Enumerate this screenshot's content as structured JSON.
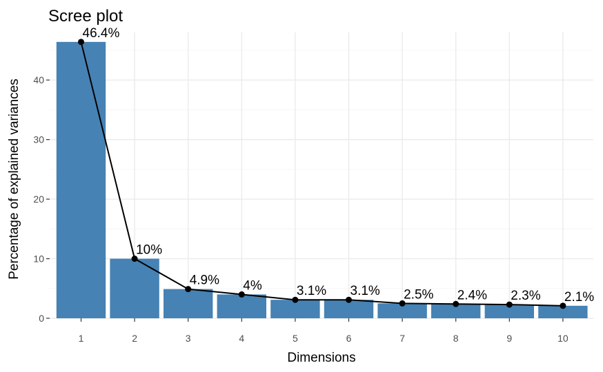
{
  "chart_data": {
    "type": "bar",
    "title": "Scree plot",
    "xlabel": "Dimensions",
    "ylabel": "Percentage of explained variances",
    "categories": [
      "1",
      "2",
      "3",
      "4",
      "5",
      "6",
      "7",
      "8",
      "9",
      "10"
    ],
    "values": [
      46.4,
      10.0,
      4.9,
      4.0,
      3.1,
      3.1,
      2.5,
      2.4,
      2.3,
      2.1
    ],
    "data_labels": [
      "46.4%",
      "10%",
      "4.9%",
      "4%",
      "3.1%",
      "3.1%",
      "2.5%",
      "2.4%",
      "2.3%",
      "2.1%"
    ],
    "y_ticks": [
      0,
      10,
      20,
      30,
      40
    ],
    "ylim": [
      0,
      48
    ],
    "grid": true,
    "bar_color": "#4682b4",
    "line_color": "#000000",
    "point_color": "#000000",
    "panel_background": "#ffffff",
    "grid_color": "#ebebeb"
  }
}
